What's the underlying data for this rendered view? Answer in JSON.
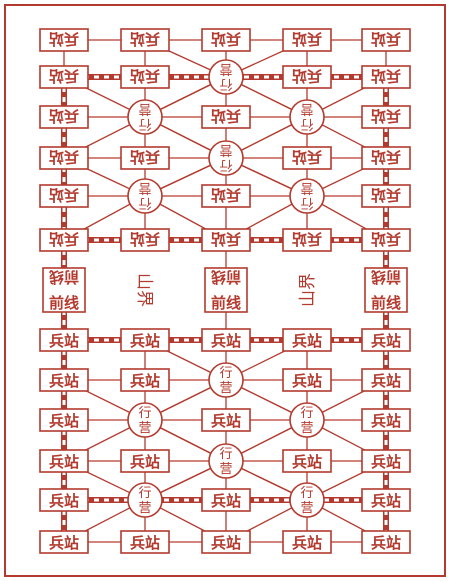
{
  "board": {
    "name": "Luzhanqi board",
    "color": "#b33a2e",
    "cols": 5,
    "post_label": "兵站",
    "camp_label": "行营",
    "frontline_label": "前线",
    "mountain_label": "山界",
    "top_half": {
      "rows": 6,
      "camps": [
        [
          1,
          2
        ],
        [
          2,
          1
        ],
        [
          2,
          3
        ],
        [
          3,
          2
        ],
        [
          4,
          1
        ],
        [
          4,
          3
        ]
      ]
    },
    "bottom_half": {
      "rows": 6,
      "camps": [
        [
          1,
          2
        ],
        [
          2,
          1
        ],
        [
          2,
          3
        ],
        [
          3,
          2
        ],
        [
          4,
          1
        ],
        [
          4,
          3
        ]
      ]
    },
    "frontline_columns": [
      0,
      2,
      4
    ]
  }
}
